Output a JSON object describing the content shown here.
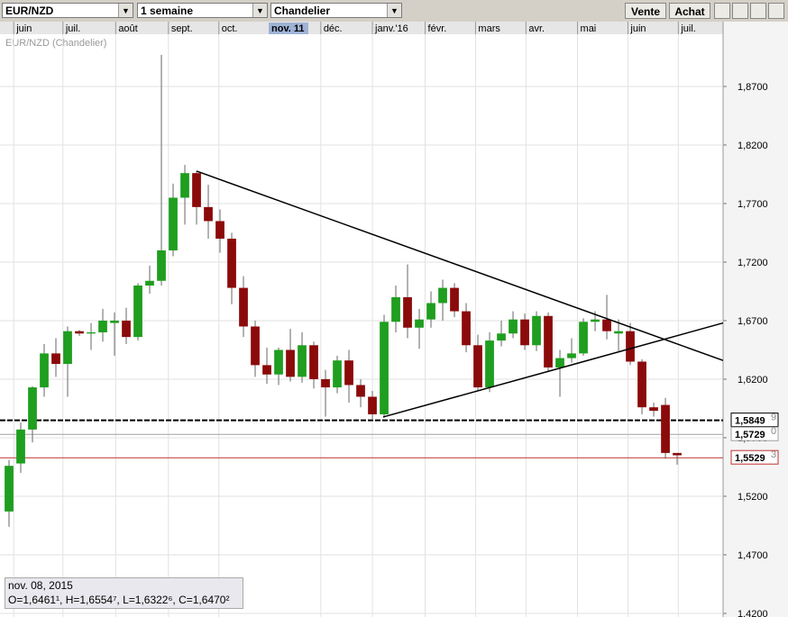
{
  "toolbar": {
    "symbol": "EUR/NZD",
    "period": "1 semaine",
    "style": "Chandelier",
    "sell": "Vente",
    "buy": "Achat"
  },
  "chart_data": {
    "type": "candlestick",
    "title": "EUR/NZD (Chandelier)",
    "up_color": "#1f9e1f",
    "down_color": "#8b0a0a",
    "grid": true,
    "crosshair_label": "nov. 11",
    "info": {
      "date": "nov. 08, 2015",
      "ohlc": "O=1,6461¹, H=1,6554⁷, L=1,6322⁶, C=1,6470²"
    },
    "xlim": [
      -0.77,
      60.92
    ],
    "ylim": [
      1.4169,
      1.9146
    ],
    "xticks": [
      {
        "value": 0.4,
        "label": "juin"
      },
      {
        "value": 4.6,
        "label": "juil."
      },
      {
        "value": 9.1,
        "label": "août"
      },
      {
        "value": 13.6,
        "label": "sept."
      },
      {
        "value": 17.9,
        "label": "oct."
      },
      {
        "value": 26.6,
        "label": "déc."
      },
      {
        "value": 31,
        "label": "janv.'16"
      },
      {
        "value": 35.5,
        "label": "févr."
      },
      {
        "value": 39.8,
        "label": "mars"
      },
      {
        "value": 44.1,
        "label": "avr."
      },
      {
        "value": 48.5,
        "label": "mai"
      },
      {
        "value": 52.8,
        "label": "juin"
      },
      {
        "value": 57.1,
        "label": "juil."
      }
    ],
    "yticks": [
      {
        "value": 1.87,
        "label": "1,8700"
      },
      {
        "value": 1.82,
        "label": "1,8200"
      },
      {
        "value": 1.77,
        "label": "1,7700"
      },
      {
        "value": 1.72,
        "label": "1,7200"
      },
      {
        "value": 1.67,
        "label": "1,6700"
      },
      {
        "value": 1.62,
        "label": "1,6200"
      },
      {
        "value": 1.57,
        "label": "1,5700"
      },
      {
        "value": 1.52,
        "label": "1,5200"
      },
      {
        "value": 1.47,
        "label": "1,4700"
      },
      {
        "value": 1.42,
        "label": "1,4200"
      }
    ],
    "open": [
      1.507,
      1.548,
      1.577,
      1.613,
      1.642,
      1.633,
      1.661,
      1.659,
      1.66,
      1.668,
      1.67,
      1.656,
      1.7,
      1.704,
      1.73,
      1.775,
      1.796,
      1.767,
      1.755,
      1.74,
      1.698,
      1.665,
      1.632,
      1.624,
      1.645,
      1.622,
      1.649,
      1.62,
      1.613,
      1.636,
      1.615,
      1.605,
      1.59,
      1.669,
      1.69,
      1.664,
      1.671,
      1.685,
      1.698,
      1.678,
      1.649,
      1.613,
      1.653,
      1.659,
      1.671,
      1.649,
      1.674,
      1.63,
      1.638,
      1.642,
      1.669,
      1.671,
      1.659,
      1.661,
      1.635,
      1.596,
      1.598,
      1.557
    ],
    "high": [
      1.551,
      1.583,
      1.614,
      1.65,
      1.655,
      1.665,
      1.662,
      1.668,
      1.68,
      1.677,
      1.681,
      1.702,
      1.717,
      1.897,
      1.787,
      1.803,
      1.798,
      1.786,
      1.765,
      1.745,
      1.708,
      1.67,
      1.647,
      1.647,
      1.663,
      1.66,
      1.652,
      1.628,
      1.64,
      1.645,
      1.62,
      1.61,
      1.675,
      1.7,
      1.718,
      1.68,
      1.695,
      1.705,
      1.702,
      1.685,
      1.658,
      1.66,
      1.67,
      1.678,
      1.676,
      1.678,
      1.677,
      1.645,
      1.655,
      1.672,
      1.678,
      1.692,
      1.671,
      1.668,
      1.637,
      1.6,
      1.604,
      1.557
    ],
    "low": [
      1.494,
      1.54,
      1.566,
      1.605,
      1.622,
      1.605,
      1.657,
      1.645,
      1.652,
      1.64,
      1.65,
      1.653,
      1.693,
      1.7,
      1.725,
      1.752,
      1.752,
      1.74,
      1.728,
      1.684,
      1.656,
      1.622,
      1.616,
      1.615,
      1.618,
      1.617,
      1.612,
      1.588,
      1.608,
      1.6,
      1.596,
      1.585,
      1.587,
      1.66,
      1.655,
      1.646,
      1.664,
      1.67,
      1.673,
      1.643,
      1.61,
      1.609,
      1.648,
      1.655,
      1.645,
      1.644,
      1.627,
      1.605,
      1.634,
      1.64,
      1.661,
      1.654,
      1.644,
      1.632,
      1.59,
      1.588,
      1.552,
      1.547
    ],
    "close": [
      1.546,
      1.577,
      1.613,
      1.642,
      1.633,
      1.661,
      1.659,
      1.66,
      1.67,
      1.67,
      1.656,
      1.7,
      1.704,
      1.73,
      1.775,
      1.796,
      1.767,
      1.755,
      1.74,
      1.698,
      1.665,
      1.632,
      1.624,
      1.645,
      1.622,
      1.649,
      1.62,
      1.613,
      1.636,
      1.615,
      1.605,
      1.59,
      1.669,
      1.69,
      1.664,
      1.671,
      1.685,
      1.698,
      1.678,
      1.649,
      1.613,
      1.653,
      1.659,
      1.671,
      1.649,
      1.674,
      1.63,
      1.638,
      1.642,
      1.669,
      1.671,
      1.661,
      1.661,
      1.635,
      1.596,
      1.593,
      1.557,
      1.555
    ],
    "trend_lines": [
      {
        "x": [
          16,
          60.92
        ],
        "y": [
          1.7977,
          1.636
        ]
      },
      {
        "x": [
          31.92,
          60.92
        ],
        "y": [
          1.5877,
          1.668
        ]
      }
    ],
    "price_lines": [
      {
        "value": 1.5849,
        "label": "1,5849",
        "sup": "9",
        "color": "#000000"
      },
      {
        "value": 1.5729,
        "label": "1,5729",
        "sup": "0",
        "color": "#a0a0a0"
      },
      {
        "value": 1.5529,
        "label": "1,5529",
        "sup": "3",
        "color": "#c03030"
      }
    ]
  }
}
